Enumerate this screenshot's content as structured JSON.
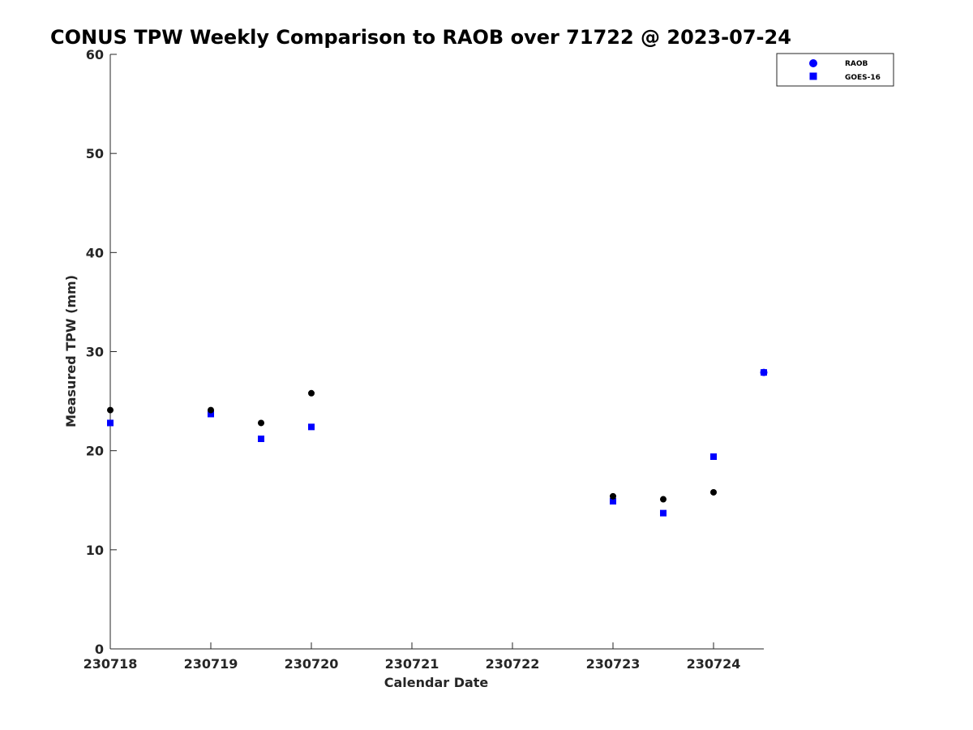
{
  "chart_data": {
    "type": "scatter",
    "title": "CONUS TPW Weekly Comparison to RAOB over 71722 @ 2023-07-24",
    "xlabel": "Calendar Date",
    "ylabel": "Measured TPW (mm)",
    "xlim": [
      230718,
      230724.5
    ],
    "ylim": [
      0,
      60
    ],
    "x_ticks": [
      230718,
      230719,
      230720,
      230721,
      230722,
      230723,
      230724
    ],
    "x_tick_labels": [
      "230718",
      "230719",
      "230720",
      "230721",
      "230722",
      "230723",
      "230724"
    ],
    "y_ticks": [
      0,
      10,
      20,
      30,
      40,
      50,
      60
    ],
    "y_tick_labels": [
      "0",
      "10",
      "20",
      "30",
      "40",
      "50",
      "60"
    ],
    "grid": false,
    "legend_position": "top-right",
    "series": [
      {
        "name": "RAOB",
        "marker": "circle",
        "color": "#000000",
        "legend_color": "#0000ff",
        "points": [
          {
            "x": 230718.0,
            "y": 24.1
          },
          {
            "x": 230719.0,
            "y": 24.1
          },
          {
            "x": 230719.5,
            "y": 22.8
          },
          {
            "x": 230720.0,
            "y": 25.8
          },
          {
            "x": 230723.0,
            "y": 15.4
          },
          {
            "x": 230723.5,
            "y": 15.1
          },
          {
            "x": 230724.0,
            "y": 15.8
          },
          {
            "x": 230724.5,
            "y": 27.9
          }
        ]
      },
      {
        "name": "GOES-16",
        "marker": "square",
        "color": "#0000ff",
        "legend_color": "#0000ff",
        "points": [
          {
            "x": 230718.0,
            "y": 22.8
          },
          {
            "x": 230719.0,
            "y": 23.7
          },
          {
            "x": 230719.5,
            "y": 21.2
          },
          {
            "x": 230720.0,
            "y": 22.4
          },
          {
            "x": 230723.0,
            "y": 14.9
          },
          {
            "x": 230723.5,
            "y": 13.7
          },
          {
            "x": 230724.0,
            "y": 19.4
          },
          {
            "x": 230724.5,
            "y": 27.9
          }
        ]
      }
    ]
  }
}
